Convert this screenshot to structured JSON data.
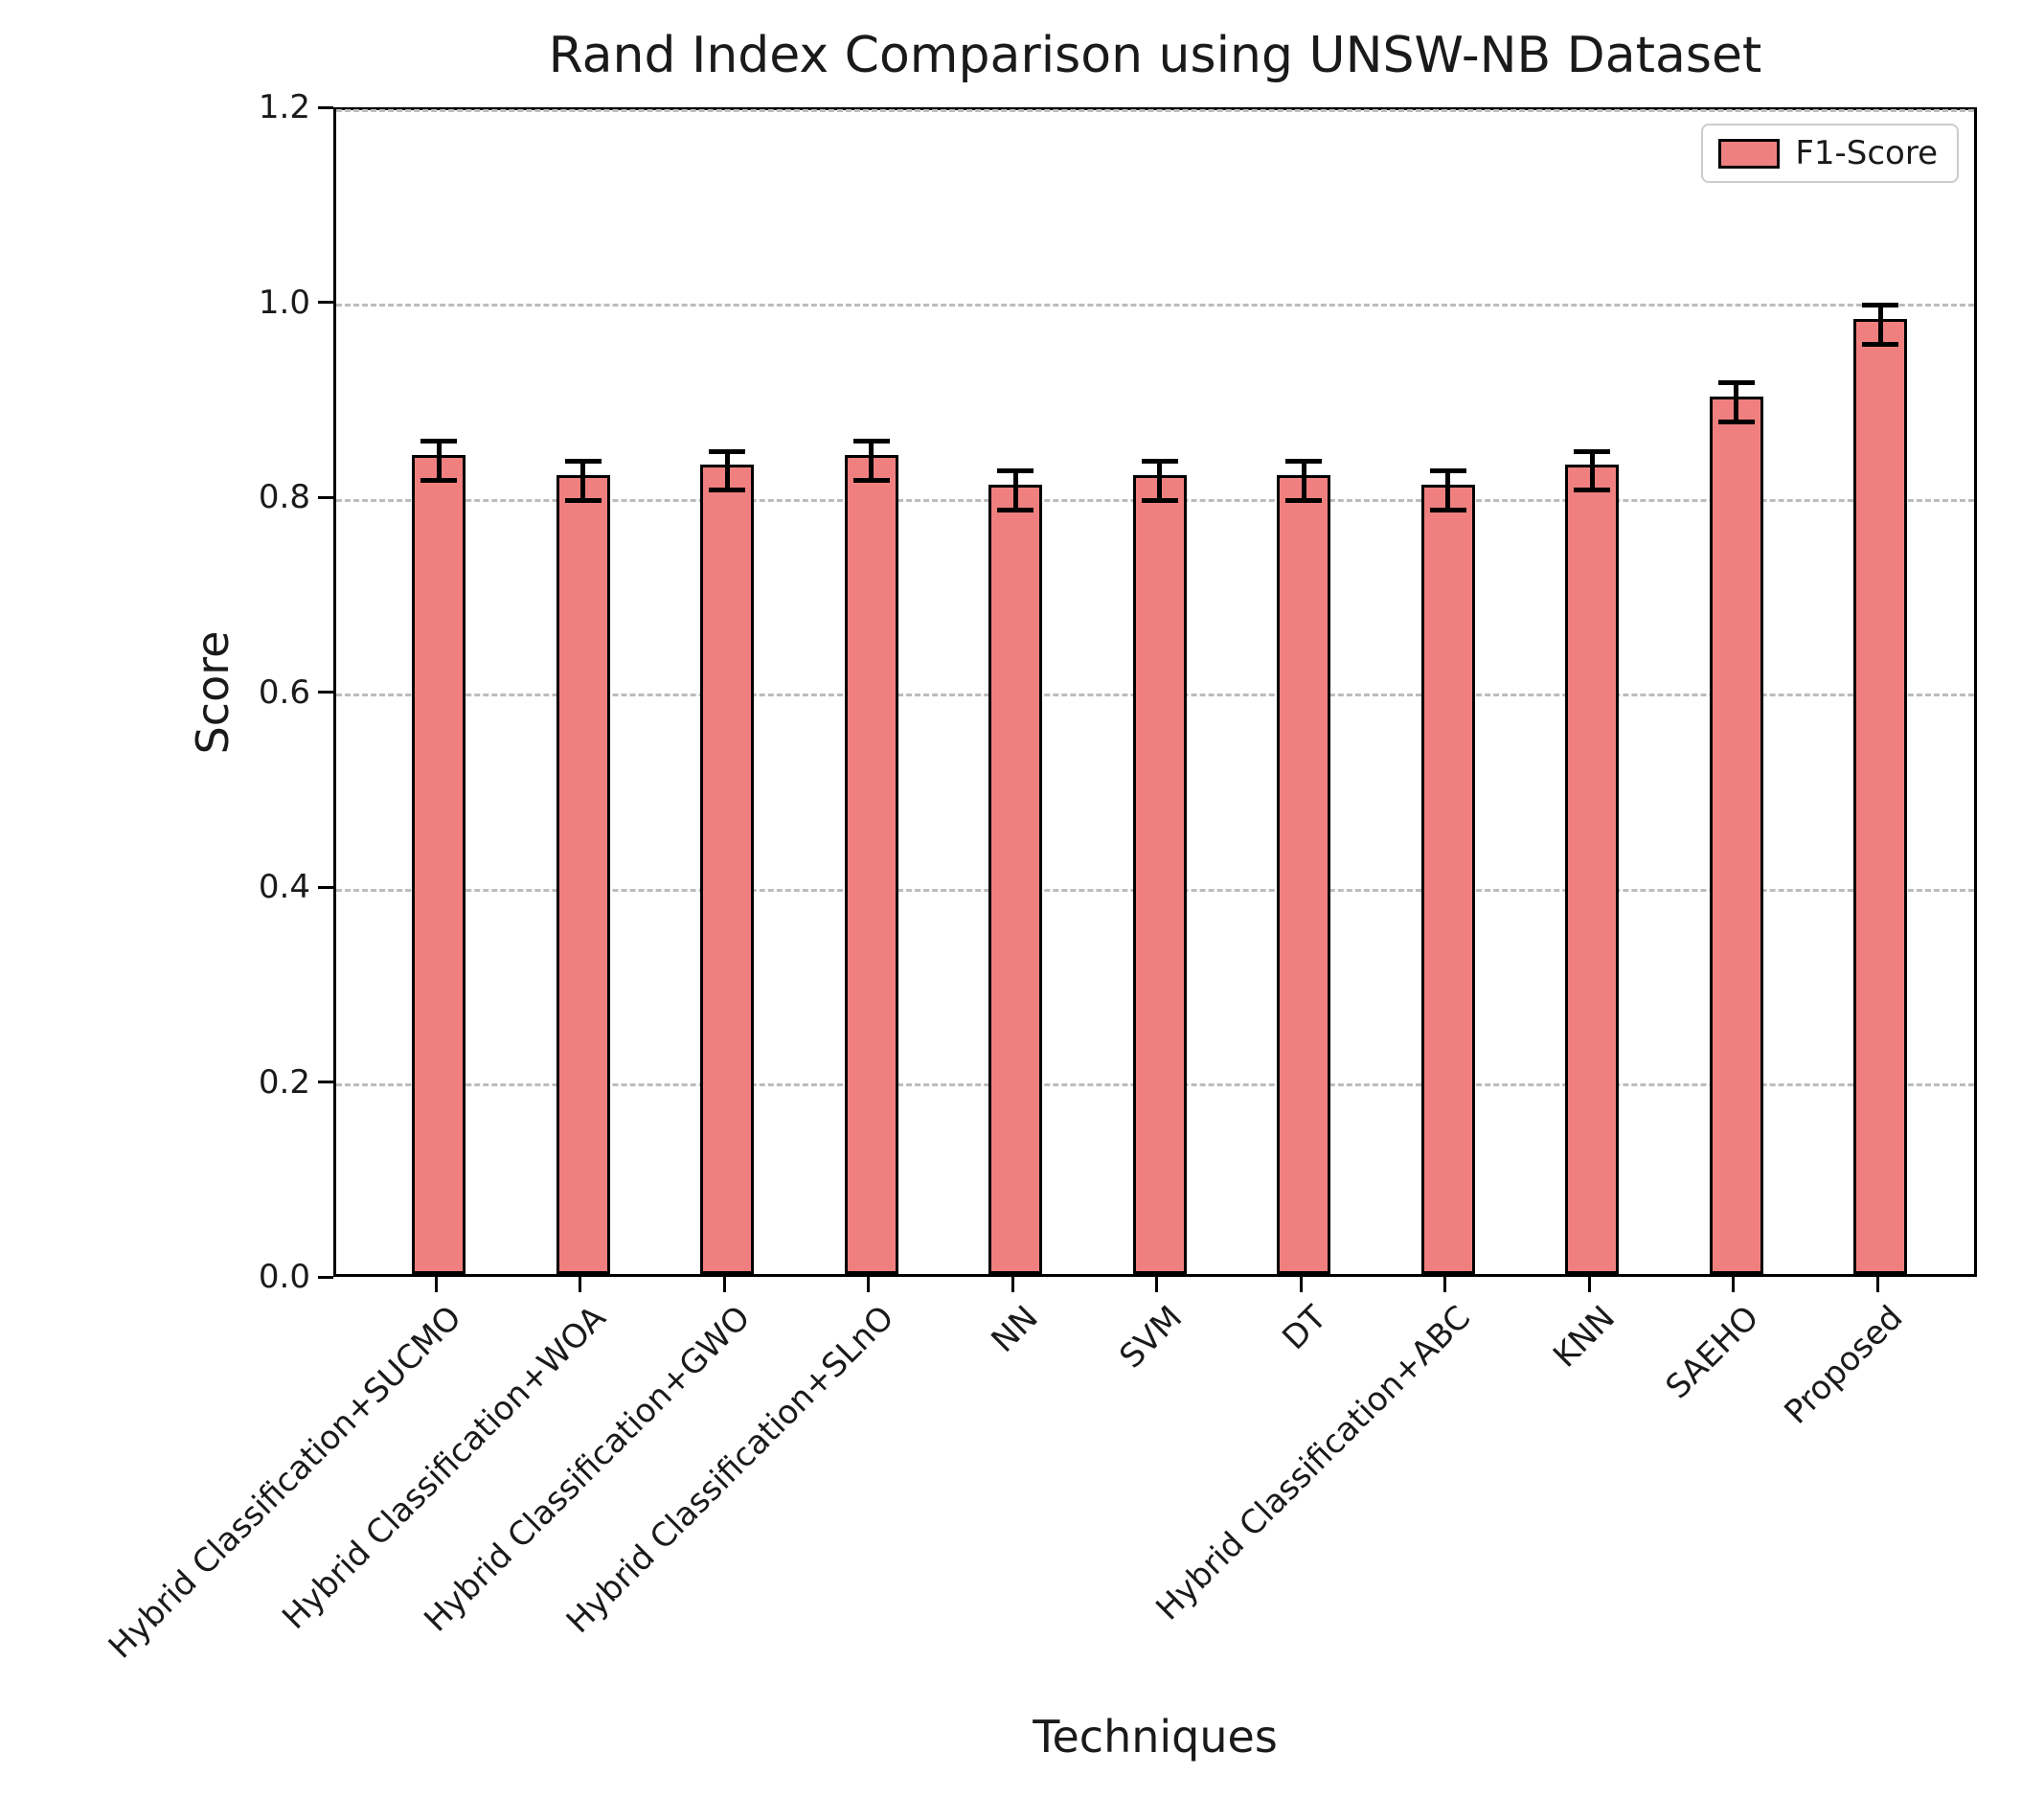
{
  "chart_data": {
    "type": "bar",
    "title": "Rand Index Comparison using UNSW-NB Dataset",
    "xlabel": "Techniques",
    "ylabel": "Score",
    "categories": [
      "Hybrid Classification+SUCMO",
      "Hybrid Classification+WOA",
      "Hybrid Classification+GWO",
      "Hybrid Classification+SLnO",
      "NN",
      "SVM",
      "DT",
      "Hybrid Classification+ABC",
      "KNN",
      "SAEHO",
      "Proposed"
    ],
    "series": [
      {
        "name": "F1-Score",
        "values": [
          0.84,
          0.82,
          0.83,
          0.84,
          0.81,
          0.82,
          0.82,
          0.81,
          0.83,
          0.9,
          0.98
        ],
        "errors": [
          0.02,
          0.02,
          0.02,
          0.02,
          0.02,
          0.02,
          0.02,
          0.02,
          0.02,
          0.02,
          0.02
        ]
      }
    ],
    "ylim": [
      0.0,
      1.2
    ],
    "yticks": [
      "0.0",
      "0.2",
      "0.4",
      "0.6",
      "0.8",
      "1.0",
      "1.2"
    ],
    "grid": "horizontal dashed",
    "legend_position": "upper right",
    "xtick_rotation_deg": 45,
    "colors": {
      "bar_fill": "#F08080",
      "bar_edge": "#000000",
      "error_bar": "#000000",
      "gridline": "#bcbcbc",
      "axis": "#000000",
      "legend_border": "#cccccc",
      "text": "#1a1a1a"
    }
  }
}
